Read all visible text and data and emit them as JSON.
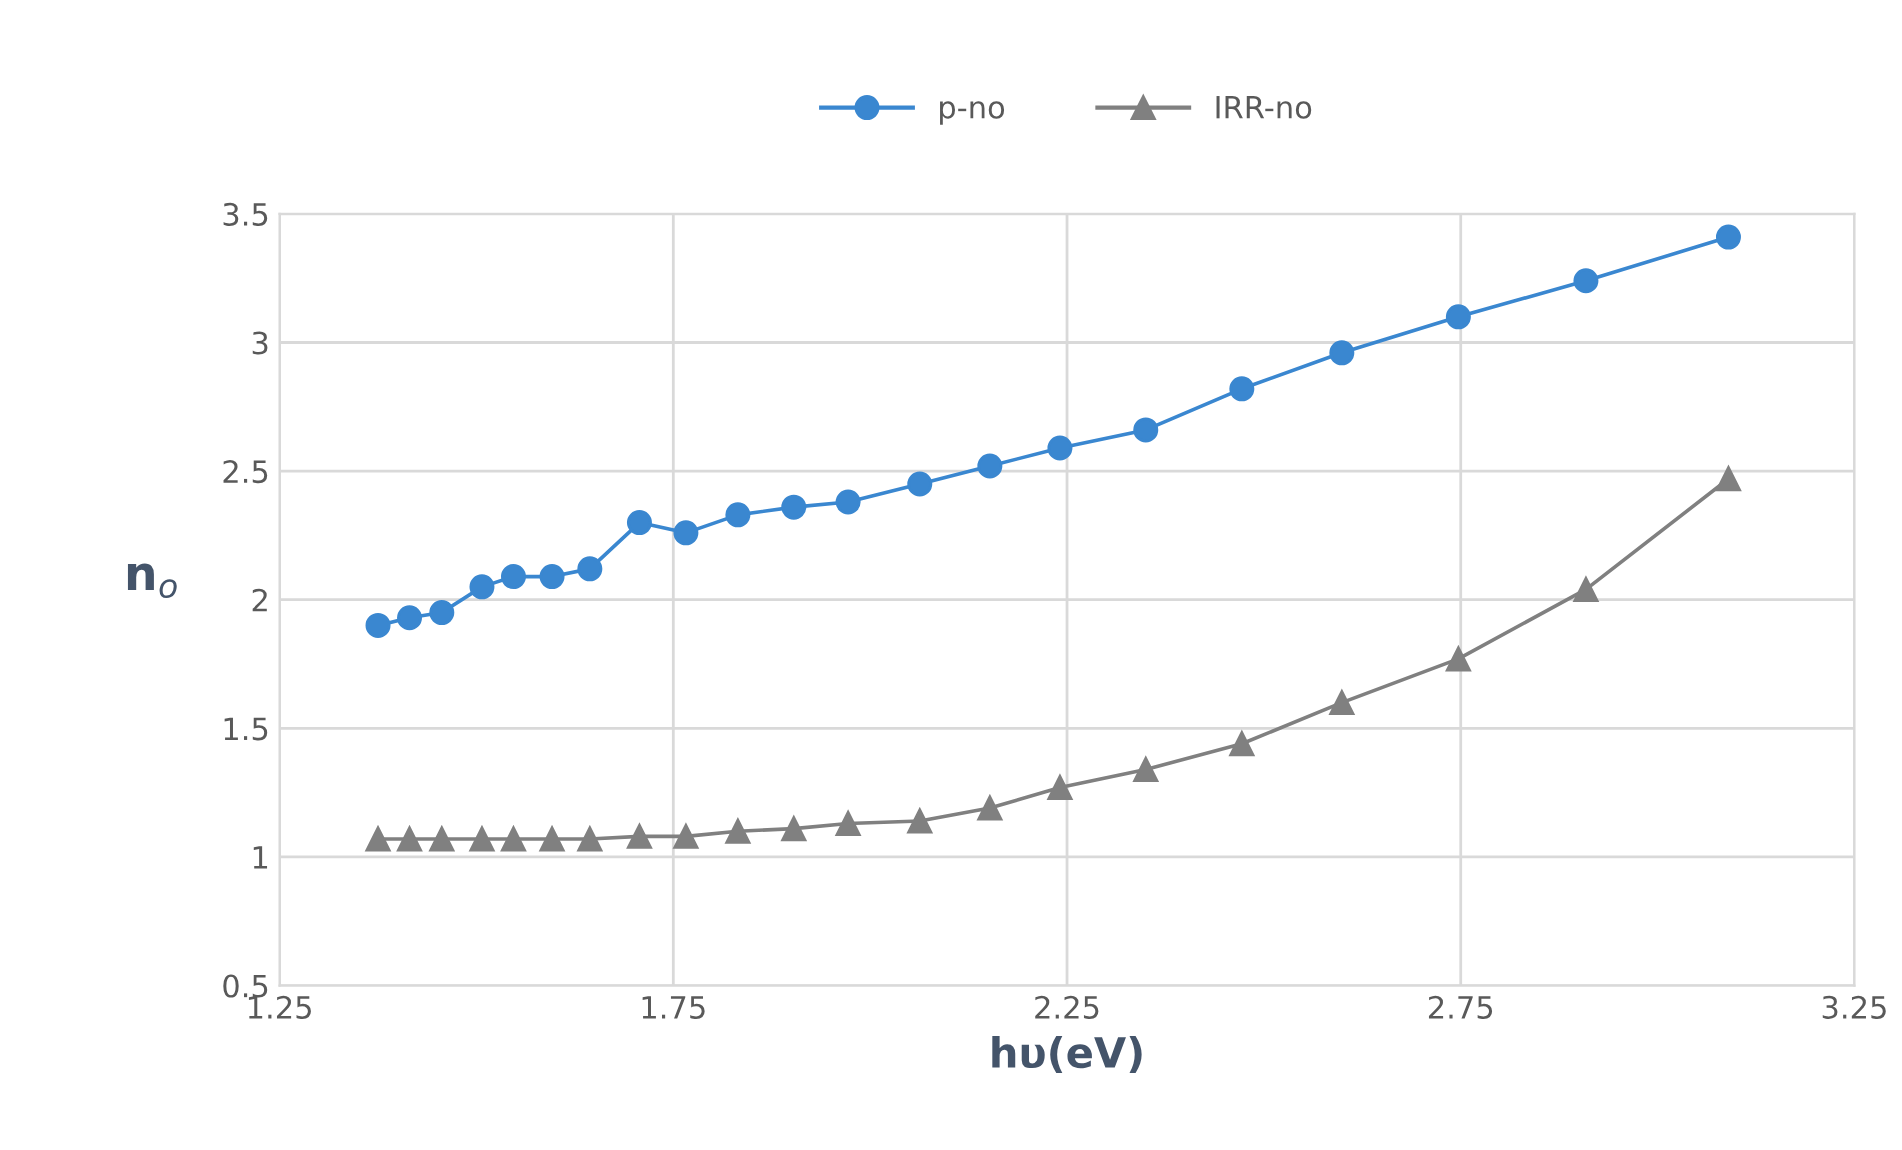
{
  "chart_data": {
    "type": "line",
    "xlabel": "hυ(eV)",
    "ylabel": "n$_{o}$",
    "x": [
      1.375,
      1.415,
      1.456,
      1.507,
      1.547,
      1.596,
      1.644,
      1.707,
      1.766,
      1.832,
      1.903,
      1.972,
      2.063,
      2.152,
      2.241,
      2.35,
      2.472,
      2.599,
      2.747,
      2.909,
      3.09
    ],
    "series": [
      {
        "name": "p-no",
        "color": "#3a87d0",
        "marker": "circle",
        "values": [
          1.9,
          1.93,
          1.95,
          2.05,
          2.09,
          2.09,
          2.12,
          2.3,
          2.26,
          2.33,
          2.36,
          2.38,
          2.45,
          2.52,
          2.59,
          2.66,
          2.82,
          2.96,
          3.1,
          3.24,
          3.41
        ]
      },
      {
        "name": "IRR-no",
        "color": "#808080",
        "marker": "triangle",
        "values": [
          1.07,
          1.07,
          1.07,
          1.07,
          1.07,
          1.07,
          1.07,
          1.08,
          1.08,
          1.1,
          1.11,
          1.13,
          1.14,
          1.19,
          1.27,
          1.34,
          1.44,
          1.6,
          1.77,
          2.04,
          2.47
        ]
      }
    ],
    "xlim": [
      1.25,
      3.25
    ],
    "xticks": [
      1.25,
      1.75,
      2.25,
      2.75,
      3.25
    ],
    "ylim": [
      0.5,
      3.5
    ],
    "yticks": [
      0.5,
      1,
      1.5,
      2,
      2.5,
      3,
      3.5
    ],
    "grid": true,
    "legend": "top",
    "line_style": "solid"
  }
}
